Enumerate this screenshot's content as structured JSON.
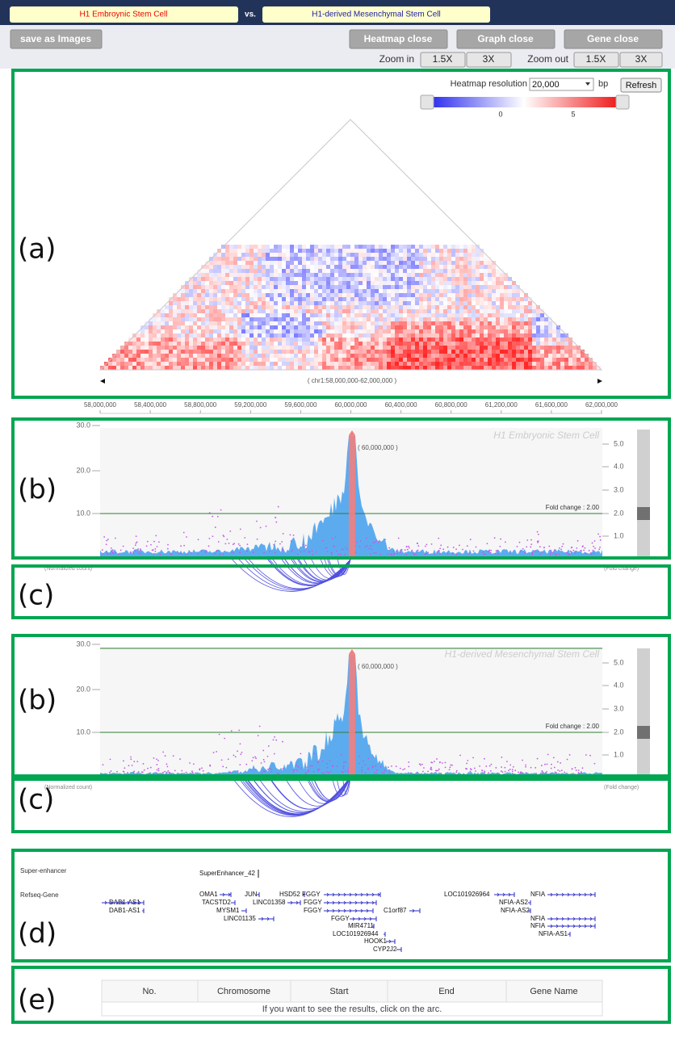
{
  "header": {
    "left": "H1 Embroynic Stem Cell",
    "vs": "vs.",
    "right": "H1-derived Mesenchymal Stem Cell"
  },
  "toolbar": {
    "save": "save as Images",
    "heatmap_close": "Heatmap close",
    "graph_close": "Graph close",
    "gene_close": "Gene close",
    "zoom_in": "Zoom in",
    "zoom_in_options": [
      "1.5X",
      "3X"
    ],
    "zoom_out": "Zoom out",
    "zoom_out_options": [
      "1.5X",
      "3X"
    ]
  },
  "panel_labels": [
    "(a)",
    "(b)",
    "(c)",
    "(b)",
    "(c)",
    "(d)",
    "(e)"
  ],
  "heatmap": {
    "resolution_label": "Heatmap resolution",
    "resolution": "20,000",
    "unit": "bp",
    "refresh": "Refresh",
    "legend_ticks": [
      "0",
      "5"
    ],
    "region": "( chr1:58,000,000-62,000,000 )"
  },
  "genome_axis": [
    "58,000,000",
    "58,400,000",
    "58,800,000",
    "59,200,000",
    "59,600,000",
    "60,000,000",
    "60,400,000",
    "60,800,000",
    "61,200,000",
    "61,600,000",
    "62,000,000"
  ],
  "graphs": [
    {
      "title": "H1 Embryonic Stem Cell",
      "position": "( 60,000,000 )",
      "threshold": "Fold change : 2.00",
      "left_ticks": [
        "30.0",
        "20.0",
        "10.0"
      ],
      "right_ticks": [
        "5.0",
        "4.0",
        "3.0",
        "2.0",
        "1.0"
      ],
      "left_axis": "(Normalized count)",
      "right_axis": "(Fold change)"
    },
    {
      "title": "H1-derived Mesenchymal Stem Cell",
      "position": "( 60,000,000 )",
      "threshold": "Fold change : 2.00",
      "left_ticks": [
        "30.0",
        "20.0",
        "10.0"
      ],
      "right_ticks": [
        "5.0",
        "4.0",
        "3.0",
        "2.0",
        "1.0"
      ],
      "left_axis": "(Normalized count)",
      "right_axis": "(Fold change)"
    }
  ],
  "genes": {
    "tracks": [
      "Super-enhancer",
      "Refseq-Gene"
    ],
    "super_enhancer": "SuperEnhancer_42",
    "refseq": [
      "DAB1-AS1",
      "DAB1-AS1",
      "OMA1",
      "TACSTD2",
      "MYSM1",
      "LINC01135",
      "JUN",
      "LINC01358",
      "HSD52",
      "FGGY",
      "FGGY",
      "FGGY",
      "FGGY",
      "MIR4711",
      "LOC101926944",
      "HOOK1",
      "CYP2J2",
      "C1orf87",
      "LOC101926964",
      "NFIA",
      "NFIA-AS2",
      "NFIA-AS2",
      "NFIA",
      "NFIA",
      "NFIA-AS1"
    ]
  },
  "table": {
    "columns": [
      "No.",
      "Chromosome",
      "Start",
      "End",
      "Gene Name"
    ],
    "message": "If you want to see the results, click on the arc."
  }
}
